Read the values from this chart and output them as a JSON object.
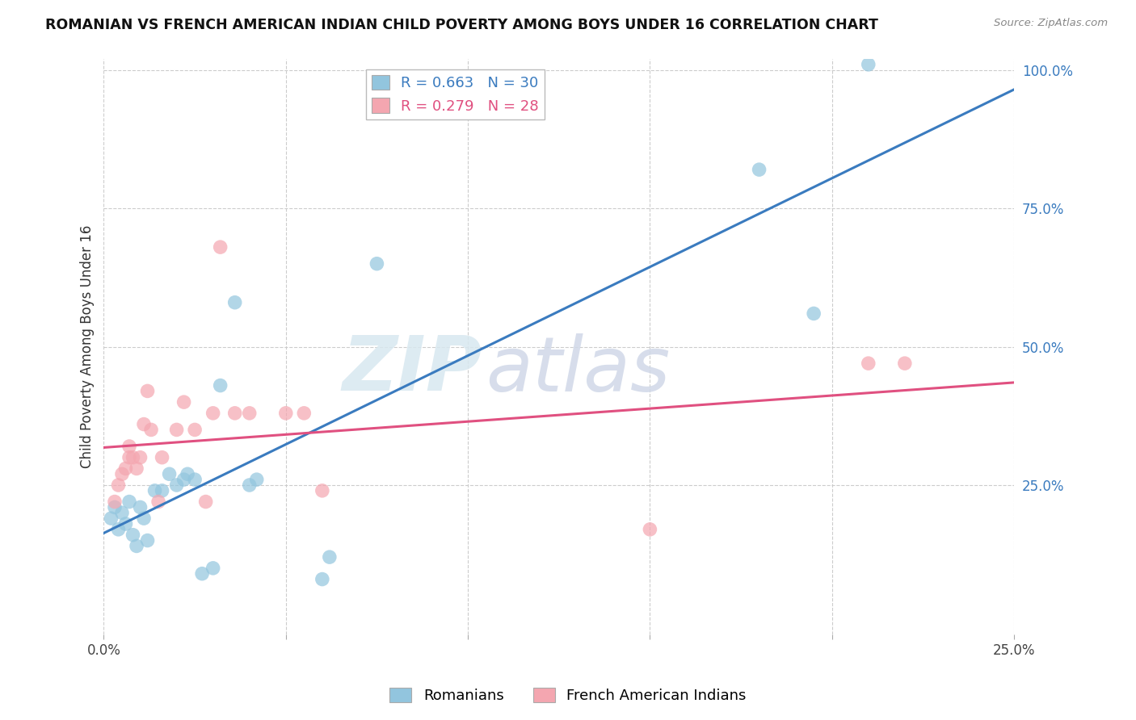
{
  "title": "ROMANIAN VS FRENCH AMERICAN INDIAN CHILD POVERTY AMONG BOYS UNDER 16 CORRELATION CHART",
  "source": "Source: ZipAtlas.com",
  "ylabel": "Child Poverty Among Boys Under 16",
  "xlim": [
    0.0,
    0.25
  ],
  "ylim": [
    -0.02,
    1.02
  ],
  "xticks": [
    0.0,
    0.05,
    0.1,
    0.15,
    0.2,
    0.25
  ],
  "yticks": [
    0.25,
    0.5,
    0.75,
    1.0
  ],
  "xtick_labels": [
    "0.0%",
    "",
    "",
    "",
    "",
    "25.0%"
  ],
  "ytick_labels": [
    "25.0%",
    "50.0%",
    "75.0%",
    "100.0%"
  ],
  "blue_R": 0.663,
  "blue_N": 30,
  "pink_R": 0.279,
  "pink_N": 28,
  "blue_color": "#92c5de",
  "pink_color": "#f4a6b0",
  "blue_line_color": "#3a7bbf",
  "pink_line_color": "#e05080",
  "legend_label_blue": "Romanians",
  "legend_label_pink": "French American Indians",
  "watermark_zip": "ZIP",
  "watermark_atlas": "atlas",
  "blue_scatter": [
    [
      0.002,
      0.19
    ],
    [
      0.003,
      0.21
    ],
    [
      0.004,
      0.17
    ],
    [
      0.005,
      0.2
    ],
    [
      0.006,
      0.18
    ],
    [
      0.007,
      0.22
    ],
    [
      0.008,
      0.16
    ],
    [
      0.009,
      0.14
    ],
    [
      0.01,
      0.21
    ],
    [
      0.011,
      0.19
    ],
    [
      0.012,
      0.15
    ],
    [
      0.014,
      0.24
    ],
    [
      0.016,
      0.24
    ],
    [
      0.018,
      0.27
    ],
    [
      0.02,
      0.25
    ],
    [
      0.022,
      0.26
    ],
    [
      0.023,
      0.27
    ],
    [
      0.025,
      0.26
    ],
    [
      0.027,
      0.09
    ],
    [
      0.03,
      0.1
    ],
    [
      0.032,
      0.43
    ],
    [
      0.036,
      0.58
    ],
    [
      0.04,
      0.25
    ],
    [
      0.042,
      0.26
    ],
    [
      0.06,
      0.08
    ],
    [
      0.062,
      0.12
    ],
    [
      0.075,
      0.65
    ],
    [
      0.18,
      0.82
    ],
    [
      0.195,
      0.56
    ],
    [
      0.21,
      1.01
    ]
  ],
  "pink_scatter": [
    [
      0.003,
      0.22
    ],
    [
      0.004,
      0.25
    ],
    [
      0.005,
      0.27
    ],
    [
      0.006,
      0.28
    ],
    [
      0.007,
      0.3
    ],
    [
      0.007,
      0.32
    ],
    [
      0.008,
      0.3
    ],
    [
      0.009,
      0.28
    ],
    [
      0.01,
      0.3
    ],
    [
      0.011,
      0.36
    ],
    [
      0.012,
      0.42
    ],
    [
      0.013,
      0.35
    ],
    [
      0.015,
      0.22
    ],
    [
      0.016,
      0.3
    ],
    [
      0.02,
      0.35
    ],
    [
      0.022,
      0.4
    ],
    [
      0.025,
      0.35
    ],
    [
      0.028,
      0.22
    ],
    [
      0.03,
      0.38
    ],
    [
      0.032,
      0.68
    ],
    [
      0.036,
      0.38
    ],
    [
      0.04,
      0.38
    ],
    [
      0.05,
      0.38
    ],
    [
      0.055,
      0.38
    ],
    [
      0.06,
      0.24
    ],
    [
      0.15,
      0.17
    ],
    [
      0.21,
      0.47
    ],
    [
      0.22,
      0.47
    ]
  ]
}
